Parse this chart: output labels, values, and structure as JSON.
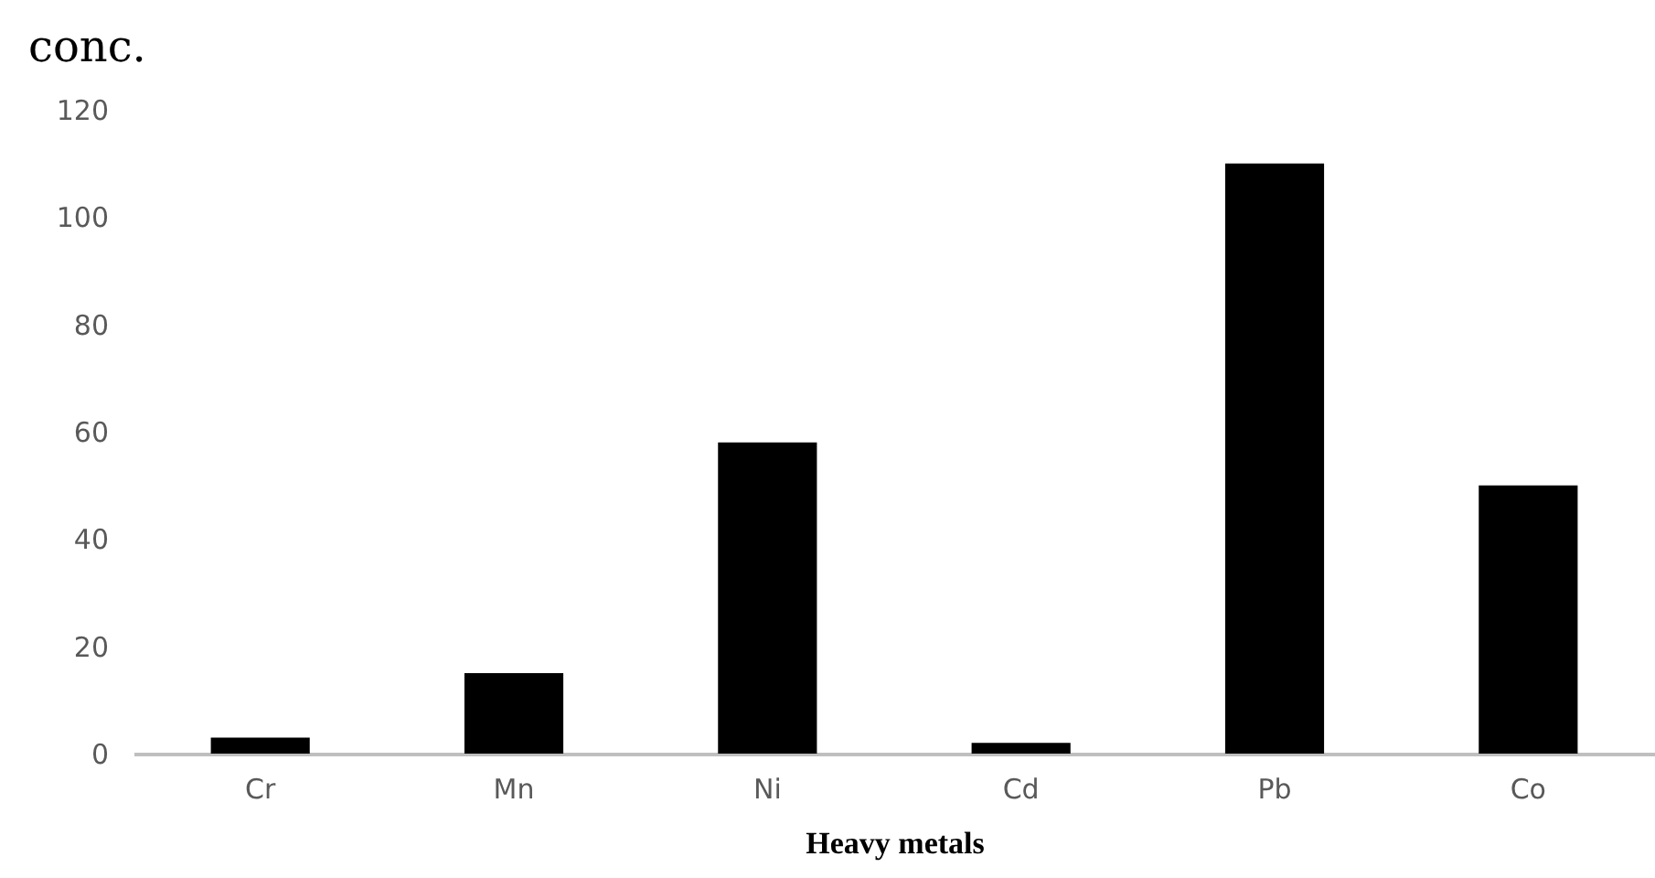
{
  "chart_data": {
    "type": "bar",
    "ylabel": "conc.",
    "xlabel": "Heavy metals",
    "categories": [
      "Cr",
      "Mn",
      "Ni",
      "Cd",
      "Pb",
      "Co"
    ],
    "values": [
      3,
      15,
      58,
      2,
      110,
      50
    ],
    "color": "#000000",
    "ylim": [
      0,
      120
    ],
    "yticks": [
      0,
      20,
      40,
      60,
      80,
      100,
      120
    ],
    "grid": false
  }
}
